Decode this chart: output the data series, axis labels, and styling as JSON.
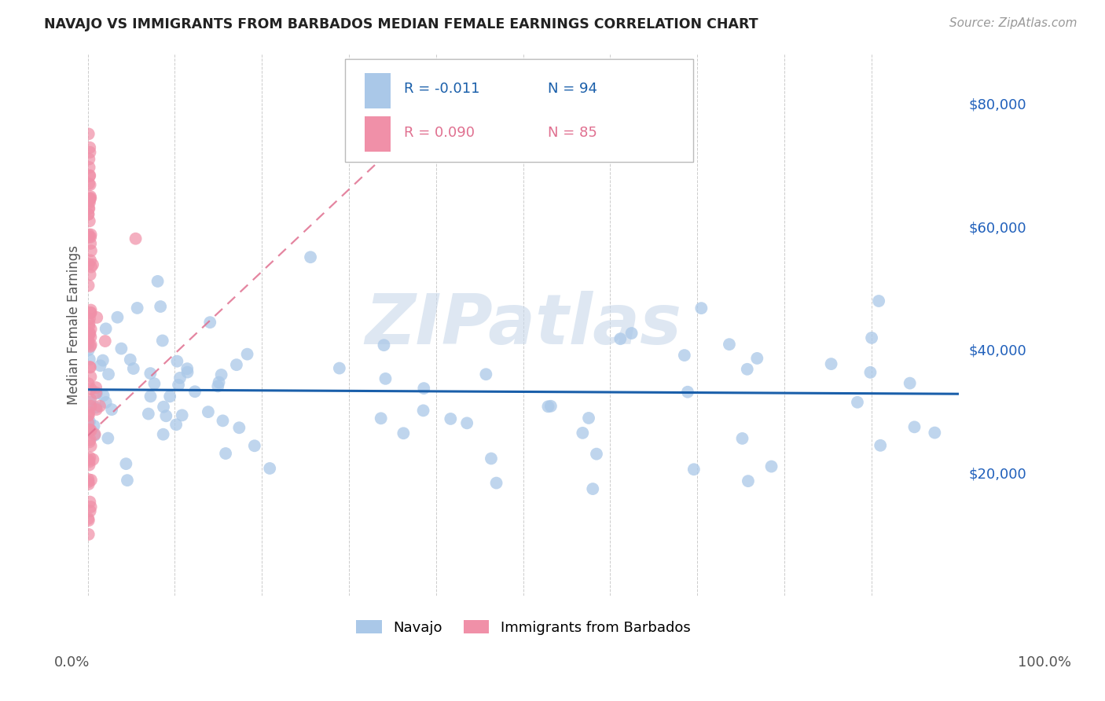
{
  "title": "NAVAJO VS IMMIGRANTS FROM BARBADOS MEDIAN FEMALE EARNINGS CORRELATION CHART",
  "source": "Source: ZipAtlas.com",
  "ylabel": "Median Female Earnings",
  "ylim": [
    0,
    88000
  ],
  "xlim": [
    0.0,
    1.0
  ],
  "navajo_color": "#aac8e8",
  "barbados_color": "#f090a8",
  "navajo_line_color": "#1a5faa",
  "barbados_line_color": "#e07090",
  "watermark_text": "ZIPatlas",
  "watermark_color": "#c8d8ea",
  "background_color": "#ffffff",
  "grid_color": "#cccccc",
  "title_color": "#222222",
  "source_color": "#999999",
  "ytick_color": "#2060bb",
  "label_color": "#555555",
  "legend_R1": "R = -0.011",
  "legend_N1": "N = 94",
  "legend_R2": "R = 0.090",
  "legend_N2": "N = 85",
  "bottom_legend1": "Navajo",
  "bottom_legend2": "Immigrants from Barbados"
}
